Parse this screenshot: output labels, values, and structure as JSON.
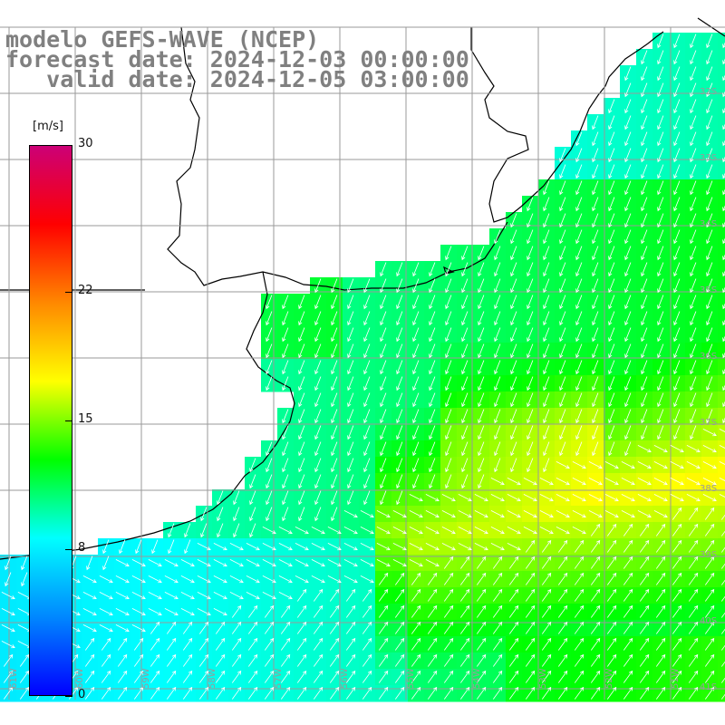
{
  "title": {
    "line1": "modelo GEFS-WAVE (NCEP)",
    "line2": "forecast date: 2024-12-03 00:00:00",
    "line3": "   valid date: 2024-12-05 03:00:00",
    "color": "#808080"
  },
  "colorbar": {
    "unit": "[m/s]",
    "ticks": [
      "30",
      "22",
      "15",
      "8",
      "0"
    ],
    "tick_values": [
      30,
      22,
      15,
      8,
      0
    ],
    "range": [
      0,
      30
    ],
    "colors": [
      "#0000ff",
      "#0088ff",
      "#00ffff",
      "#00ff00",
      "#ffff00",
      "#ff8800",
      "#ff0000",
      "#cc0077"
    ]
  },
  "map": {
    "variable": "wind speed and direction",
    "lat_labels": [
      "32S",
      "33S",
      "34S",
      "35S",
      "36S",
      "37S",
      "38S",
      "39S",
      "40S",
      "41S"
    ],
    "lon_labels": [
      "61W",
      "60W",
      "59W",
      "58W",
      "57W",
      "56W",
      "55W",
      "54W",
      "53W",
      "52W",
      "51W",
      "50W"
    ],
    "land_color": "#ffffff",
    "coast_color": "#000000",
    "grid_color": "#9a9a9a",
    "arrow_color": "#ffffff"
  }
}
